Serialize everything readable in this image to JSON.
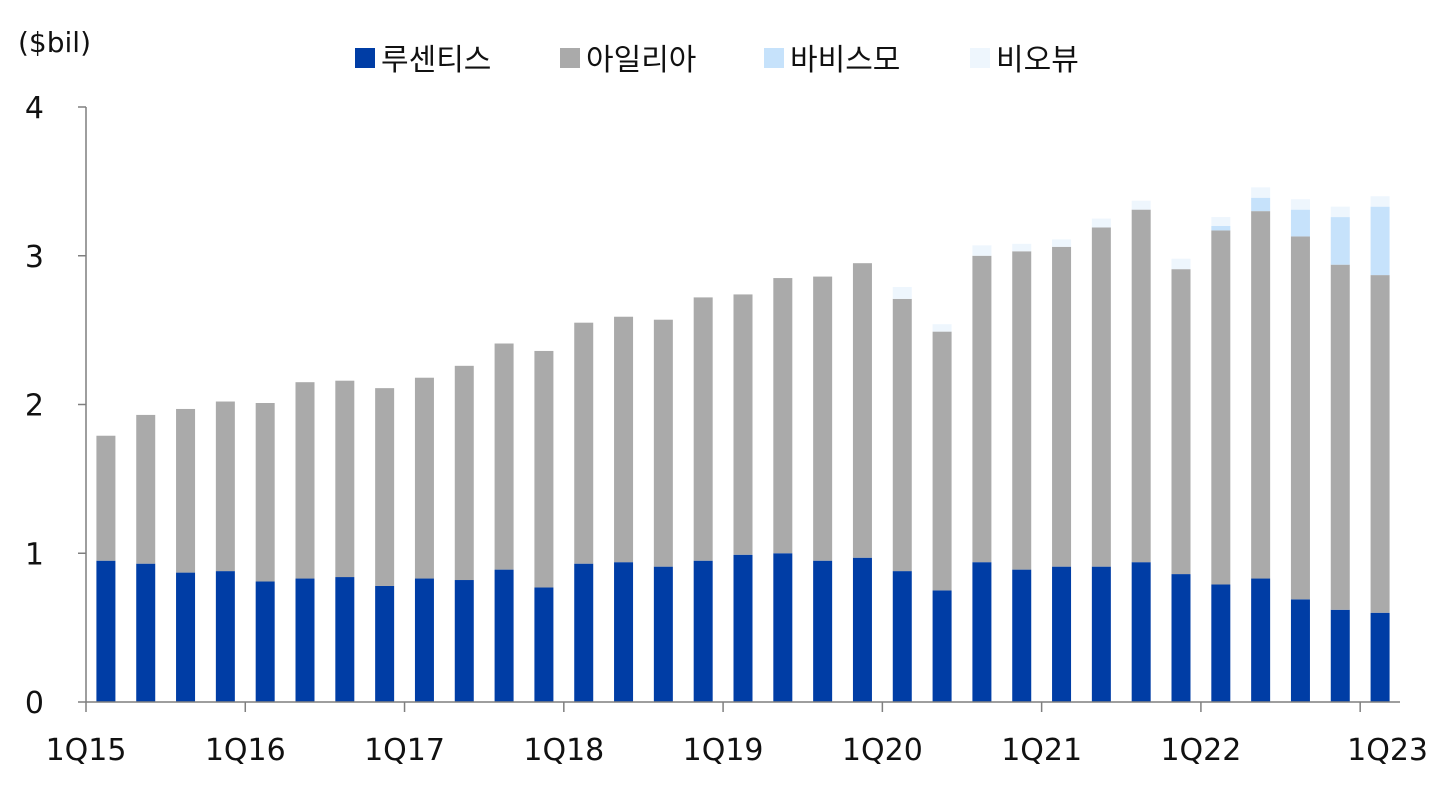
{
  "chart_data": {
    "type": "bar",
    "stacked": true,
    "unit_label": "($bil)",
    "grid": false,
    "legend_position": "top",
    "ylim": [
      0,
      4
    ],
    "y_ticks": [
      "0",
      "1",
      "2",
      "3",
      "4"
    ],
    "x_tick_labels": [
      "1Q15",
      "1Q16",
      "1Q17",
      "1Q18",
      "1Q19",
      "1Q20",
      "1Q21",
      "1Q22",
      "1Q23"
    ],
    "categories": [
      "1Q15",
      "2Q15",
      "3Q15",
      "4Q15",
      "1Q16",
      "2Q16",
      "3Q16",
      "4Q16",
      "1Q17",
      "2Q17",
      "3Q17",
      "4Q17",
      "1Q18",
      "2Q18",
      "3Q18",
      "4Q18",
      "1Q19",
      "2Q19",
      "3Q19",
      "4Q19",
      "1Q20",
      "2Q20",
      "3Q20",
      "4Q20",
      "1Q21",
      "2Q21",
      "3Q21",
      "4Q21",
      "1Q22",
      "2Q22",
      "3Q22",
      "4Q22",
      "1Q23"
    ],
    "series": [
      {
        "name": "루센티스",
        "color": "#003DA5",
        "values": [
          0.95,
          0.93,
          0.87,
          0.88,
          0.81,
          0.83,
          0.84,
          0.78,
          0.83,
          0.82,
          0.89,
          0.77,
          0.93,
          0.94,
          0.91,
          0.95,
          0.99,
          1.0,
          0.95,
          0.97,
          0.88,
          0.75,
          0.94,
          0.89,
          0.91,
          0.91,
          0.94,
          0.86,
          0.79,
          0.83,
          0.69,
          0.62,
          0.6
        ]
      },
      {
        "name": "아일리아",
        "color": "#AAAAAA",
        "values": [
          0.84,
          1.0,
          1.1,
          1.14,
          1.2,
          1.32,
          1.32,
          1.33,
          1.35,
          1.44,
          1.52,
          1.59,
          1.62,
          1.65,
          1.66,
          1.77,
          1.75,
          1.85,
          1.91,
          1.98,
          1.83,
          1.74,
          2.06,
          2.14,
          2.15,
          2.28,
          2.37,
          2.05,
          2.38,
          2.47,
          2.44,
          2.32,
          2.27
        ]
      },
      {
        "name": "바비스모",
        "color": "#C6E2FB",
        "values": [
          0,
          0,
          0,
          0,
          0,
          0,
          0,
          0,
          0,
          0,
          0,
          0,
          0,
          0,
          0,
          0,
          0,
          0,
          0,
          0,
          0,
          0,
          0,
          0,
          0,
          0,
          0,
          0,
          0.03,
          0.09,
          0.18,
          0.32,
          0.46
        ]
      },
      {
        "name": "비오뷰",
        "color": "#EEF6FD",
        "values": [
          0,
          0,
          0,
          0,
          0,
          0,
          0,
          0,
          0,
          0,
          0,
          0,
          0,
          0,
          0,
          0,
          0,
          0,
          0,
          0,
          0.08,
          0.05,
          0.07,
          0.05,
          0.05,
          0.06,
          0.06,
          0.07,
          0.06,
          0.07,
          0.07,
          0.07,
          0.07
        ]
      }
    ]
  }
}
